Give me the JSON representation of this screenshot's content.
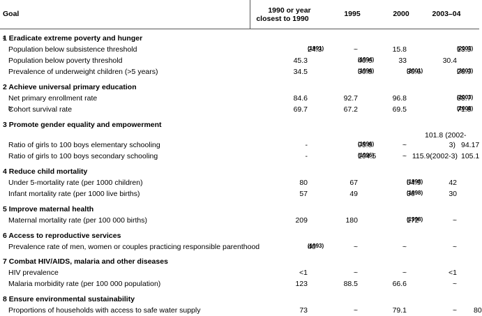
{
  "header": {
    "goal": "Goal",
    "c1_line1": "1990 or year",
    "c1_line2": "closest to 1990",
    "c2": "1995",
    "c3": "2000",
    "c4": "2003–04"
  },
  "sections": [
    {
      "title": "1 Eradicate extreme poverty and hunger",
      "suffix": "a"
    },
    {
      "title": "2 Achieve universal primary education"
    },
    {
      "title": "3 Promote gender equality and empowerment"
    },
    {
      "title": "4 Reduce child mortality"
    },
    {
      "title": "5 Improve maternal health"
    },
    {
      "title": "6 Access to reproductive services"
    },
    {
      "title": "7 Combat HIV/AIDS, malaria and other diseases"
    },
    {
      "title": "8 Ensure environmental sustainability"
    }
  ],
  "rows": {
    "r1": {
      "label": "Population below subsistence threshold",
      "c1": "24.3",
      "c1n": "(1991)",
      "c2": "~",
      "c3": "15.8",
      "c4": "13.5",
      "c4n": "(2003)"
    },
    "r2": {
      "label": "Population below poverty threshold",
      "c1": "45.3",
      "c2": "40.6",
      "c2n": "(1994)",
      "c3": "33",
      "c4": "30.4"
    },
    "r3": {
      "label": "Prevalence of underweight children (>5 years)",
      "c1": "34.5",
      "c2": "30.8",
      "c2n": "(1996)",
      "c3": "30.6",
      "c3n": "(2001)",
      "c4": "26.9",
      "c4n": "(2003)"
    },
    "r4": {
      "label": "Net primary enrollment rate",
      "c1": "84.6",
      "c2": "92.7",
      "c3": "96.8",
      "c4": "88.7",
      "c4n": "(2003)"
    },
    "r5": {
      "label": "Cohort survival rate",
      "suffix": "b",
      "c1": "69.7",
      "c2": "67.2",
      "c3": "69.5",
      "c4": "71.8",
      "c4n": "(2008)"
    },
    "r6": {
      "label": "Ratio of girls to 100 boys elementary schooling",
      "c1": "-",
      "c2": "95.8",
      "c2n": "(1996)",
      "c3": "~",
      "c4a": "101.8 (2002-",
      "c4b": "3)",
      "c5": "94.17"
    },
    "r7": {
      "label": "Ratio of girls to 100 boys secondary schooling",
      "c1": "-",
      "c2": "104.5",
      "c2n": "(1996)",
      "c3": "~",
      "c4": "115.9(2002-3)",
      "c5": "105.1"
    },
    "r8": {
      "label": "Under 5-mortality rate (per 1000 children)",
      "c1": "80",
      "c2": "67",
      "c3": "54.9",
      "c3n": "(1998)",
      "c4": "42"
    },
    "r9": {
      "label": "Infant mortality rate (per 1000 live births)",
      "c1": "57",
      "c2": "49",
      "c3": "36",
      "c3n": "(1998)",
      "c4": "30"
    },
    "r10": {
      "label": "Maternal mortality rate (per 100 000 births)",
      "c1": "209",
      "c2": "180",
      "c3": "172",
      "c3n": "(1998)",
      "c4": "~"
    },
    "r11": {
      "label": "Prevalence rate of men, women or couples practicing responsible parenthood",
      "c1": "40",
      "c1n": "(1993)",
      "c2": "~",
      "c3": "~",
      "c4": "~"
    },
    "r12": {
      "label": "HIV prevalence",
      "c1": "<1",
      "c2": "~",
      "c3": "~",
      "c4": "<1"
    },
    "r13": {
      "label": "Malaria morbidity rate (per 100 000 population)",
      "c1": "123",
      "c2": "88.5",
      "c3": "66.6",
      "c4": "~"
    },
    "r14": {
      "label": "Proportions of households with access to safe water supply",
      "c1": "73",
      "c2": "~",
      "c3": "79.1",
      "c4": "~",
      "c5": "80"
    }
  }
}
